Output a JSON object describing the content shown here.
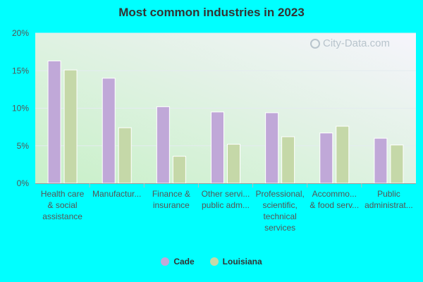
{
  "chart_data": {
    "type": "bar",
    "title": "Most common industries in 2023",
    "categories": [
      [
        "Health care",
        "& social",
        "assistance"
      ],
      [
        "Manufactur..."
      ],
      [
        "Finance &",
        "insurance"
      ],
      [
        "Other servi...",
        "public adm..."
      ],
      [
        "Professional,",
        "scientific,",
        "technical",
        "services"
      ],
      [
        "Accommo...",
        "& food serv..."
      ],
      [
        "Public",
        "administrat..."
      ]
    ],
    "series": [
      {
        "name": "Cade",
        "color": "#c0a8d8",
        "values": [
          16.3,
          14.0,
          10.2,
          9.5,
          9.4,
          6.7,
          6.0
        ]
      },
      {
        "name": "Louisiana",
        "color": "#c5d8a8",
        "values": [
          15.1,
          7.4,
          3.6,
          5.2,
          6.2,
          7.6,
          5.1
        ]
      }
    ],
    "yticks": [
      "0%",
      "5%",
      "10%",
      "15%",
      "20%"
    ],
    "ylim": [
      0,
      20
    ],
    "xlabel": "",
    "ylabel": "",
    "grid": true,
    "legend_position": "bottom"
  },
  "watermark": {
    "text": "City-Data.com"
  }
}
